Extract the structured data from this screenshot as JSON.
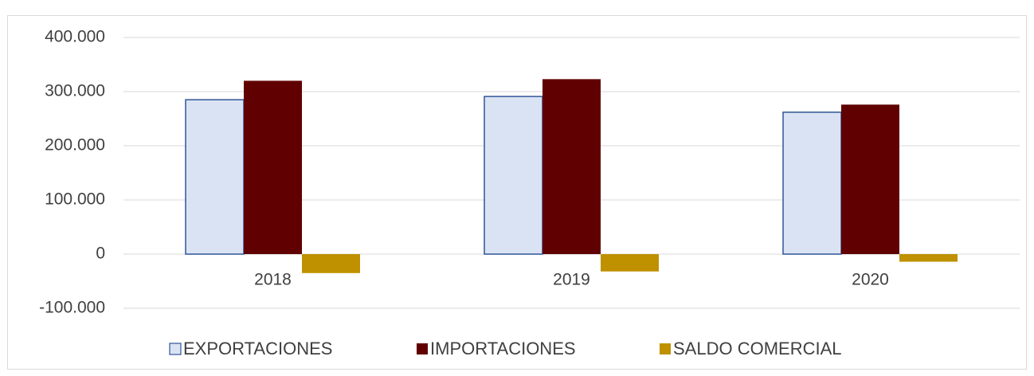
{
  "chart_data": {
    "type": "bar",
    "categories": [
      "2018",
      "2019",
      "2020"
    ],
    "series": [
      {
        "name": "EXPORTACIONES",
        "color": "#dae3f3",
        "values": [
          285000,
          291000,
          262000
        ]
      },
      {
        "name": "IMPORTACIONES",
        "color": "#600000",
        "values": [
          320000,
          323000,
          276000
        ]
      },
      {
        "name": "SALDO COMERCIAL",
        "color": "#bf9000",
        "values": [
          -35000,
          -32000,
          -14000
        ]
      }
    ],
    "ylim": [
      -100000,
      400000
    ],
    "yticks": [
      {
        "value": -100000,
        "label": "-100.000"
      },
      0,
      {
        "value": 100000,
        "label": "100.000"
      },
      {
        "value": 200000,
        "label": "200.000"
      },
      {
        "value": 300000,
        "label": "300.000"
      },
      {
        "value": 400000,
        "label": "400.000"
      }
    ],
    "grid": true,
    "legend": "bottom"
  }
}
